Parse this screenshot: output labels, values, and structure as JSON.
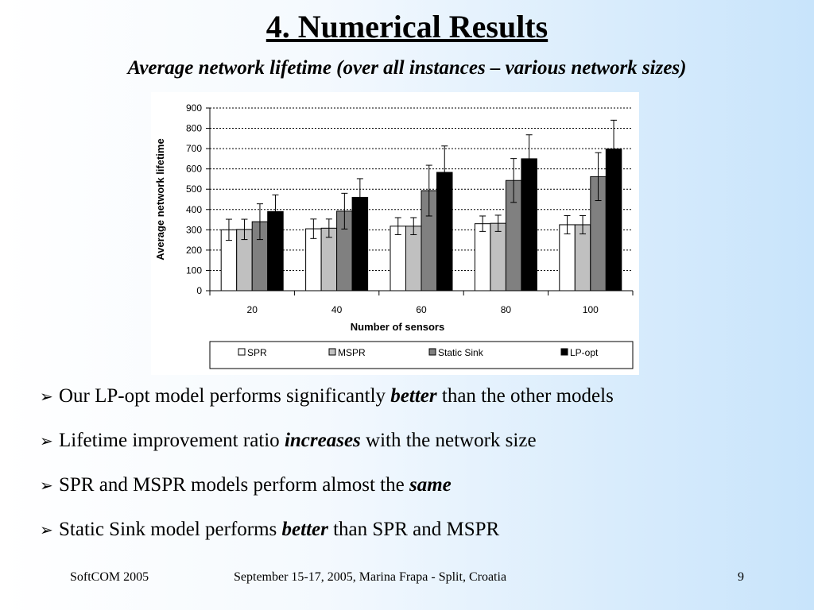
{
  "slide": {
    "title": "4. Numerical Results",
    "subtitle": "Average network lifetime (over all instances – various network sizes)"
  },
  "chart_data": {
    "type": "bar",
    "title": "",
    "xlabel": "Number of sensors",
    "ylabel": "Average network lifetime",
    "categories": [
      "20",
      "40",
      "60",
      "80",
      "100"
    ],
    "ylim": [
      0,
      900
    ],
    "yticks": [
      0,
      100,
      200,
      300,
      400,
      500,
      600,
      700,
      800,
      900
    ],
    "grid": true,
    "legend_position": "bottom",
    "error_bars": true,
    "series": [
      {
        "name": "SPR",
        "color": "#ffffff",
        "values": [
          300,
          305,
          318,
          330,
          325
        ],
        "err": [
          52,
          48,
          42,
          38,
          45
        ]
      },
      {
        "name": "MSPR",
        "color": "#c0c0c0",
        "values": [
          302,
          308,
          318,
          332,
          325
        ],
        "err": [
          50,
          45,
          42,
          40,
          45
        ]
      },
      {
        "name": "Static Sink",
        "color": "#808080",
        "values": [
          340,
          392,
          493,
          543,
          562
        ],
        "err": [
          88,
          88,
          125,
          108,
          118
        ]
      },
      {
        "name": "LP-opt",
        "color": "#000000",
        "values": [
          390,
          460,
          583,
          650,
          698
        ],
        "err": [
          82,
          92,
          130,
          118,
          142
        ]
      }
    ]
  },
  "bullets": [
    {
      "pre": "Our LP-opt model performs significantly ",
      "em": "better",
      "post": " than the other models"
    },
    {
      "pre": "Lifetime improvement ratio ",
      "em": "increases",
      "post": " with the network size"
    },
    {
      "pre": "SPR and MSPR models perform almost the ",
      "em": "same",
      "post": ""
    },
    {
      "pre": "Static Sink model performs ",
      "em": "better",
      "post": " than SPR and MSPR"
    }
  ],
  "bullet_symbol": "➢",
  "footer": {
    "left": "SoftCOM 2005",
    "center": "September 15-17, 2005, Marina Frapa - Split, Croatia",
    "page": "9"
  }
}
